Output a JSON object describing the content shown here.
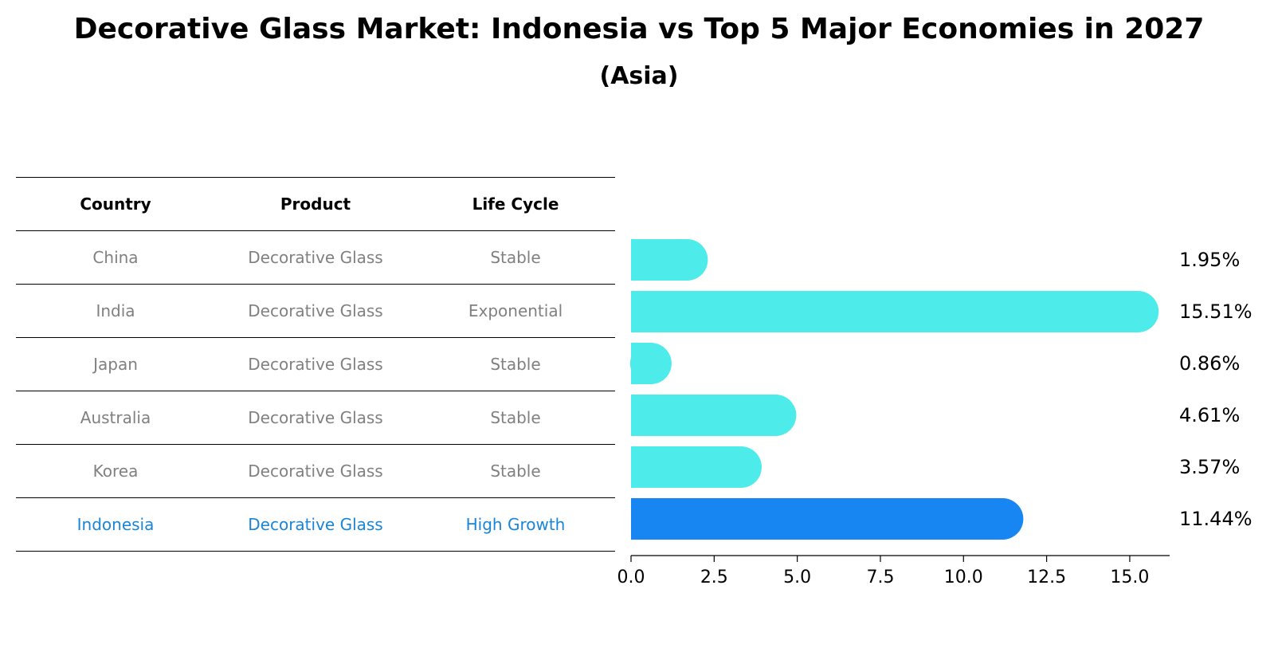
{
  "title": "Decorative Glass Market: Indonesia vs Top 5 Major Economies in 2027",
  "subtitle": "(Asia)",
  "table": {
    "headers": [
      "Country",
      "Product",
      "Life Cycle"
    ],
    "rows": [
      {
        "country": "China",
        "product": "Decorative Glass",
        "life_cycle": "Stable"
      },
      {
        "country": "India",
        "product": "Decorative Glass",
        "life_cycle": "Exponential"
      },
      {
        "country": "Japan",
        "product": "Decorative Glass",
        "life_cycle": "Stable"
      },
      {
        "country": "Australia",
        "product": "Decorative Glass",
        "life_cycle": "Stable"
      },
      {
        "country": "Korea",
        "product": "Decorative Glass",
        "life_cycle": "Stable"
      },
      {
        "country": "Indonesia",
        "product": "Decorative Glass",
        "life_cycle": "High Growth"
      }
    ]
  },
  "colors": {
    "bar": "#4debe9",
    "highlight_bar": "#1886f2",
    "highlight_text": "#1a85d6",
    "muted_text": "#808080"
  },
  "chart_data": {
    "type": "bar",
    "orientation": "horizontal",
    "categories": [
      "China",
      "India",
      "Japan",
      "Australia",
      "Korea",
      "Indonesia"
    ],
    "values": [
      1.95,
      15.51,
      0.86,
      4.61,
      3.57,
      11.44
    ],
    "value_labels": [
      "1.95%",
      "15.51%",
      "0.86%",
      "4.61%",
      "3.57%",
      "11.44%"
    ],
    "highlight": "Indonesia",
    "xlim": [
      0,
      16.2
    ],
    "xticks": [
      0.0,
      2.5,
      5.0,
      7.5,
      10.0,
      12.5,
      15.0
    ],
    "xtick_labels": [
      "0.0",
      "2.5",
      "5.0",
      "7.5",
      "10.0",
      "12.5",
      "15.0"
    ],
    "xlabel": "",
    "ylabel": ""
  }
}
